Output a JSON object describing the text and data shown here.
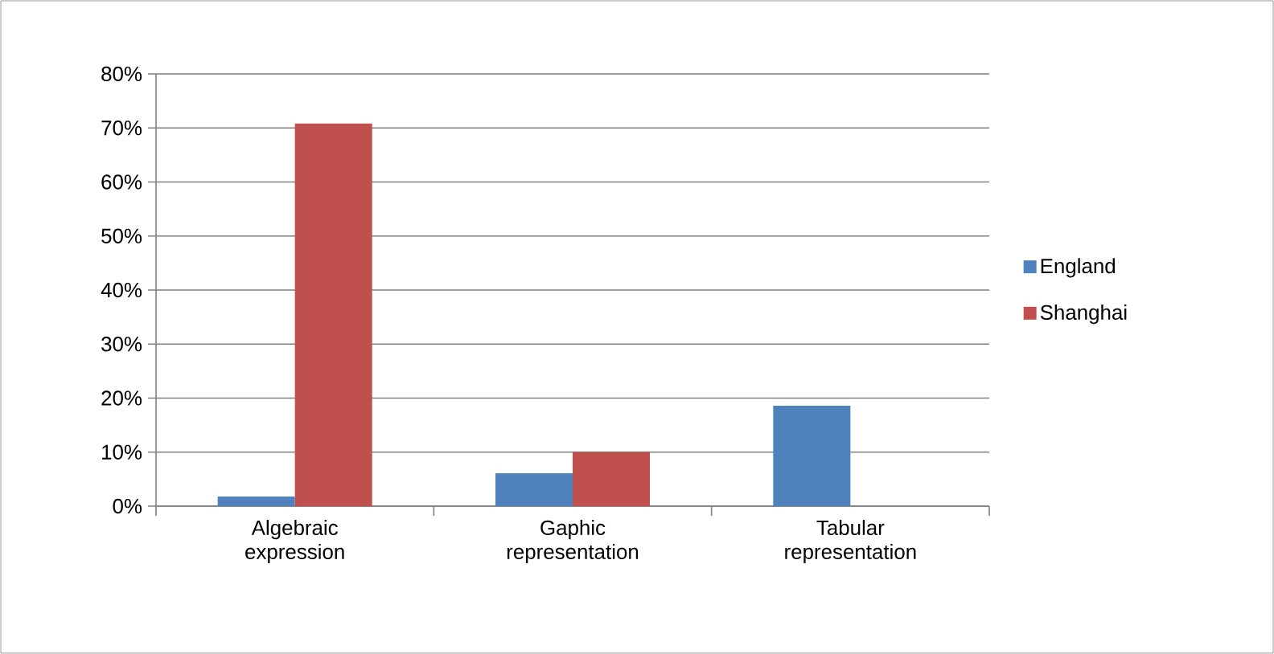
{
  "chart_data": {
    "type": "bar",
    "categories": [
      "Algebraic expression",
      "Gaphic representation",
      "Tabular representation"
    ],
    "series": [
      {
        "name": "England",
        "color": "#4f81bd",
        "values": [
          1.8,
          6.1,
          18.6
        ]
      },
      {
        "name": "Shanghai",
        "color": "#c0504d",
        "values": [
          70.8,
          10,
          0
        ]
      }
    ],
    "ylim": [
      0,
      80
    ],
    "yticks": [
      {
        "value": 0,
        "label": "0%"
      },
      {
        "value": 10,
        "label": "10%"
      },
      {
        "value": 20,
        "label": "20%"
      },
      {
        "value": 30,
        "label": "30%"
      },
      {
        "value": 40,
        "label": "40%"
      },
      {
        "value": 50,
        "label": "50%"
      },
      {
        "value": 60,
        "label": "60%"
      },
      {
        "value": 70,
        "label": "70%"
      },
      {
        "value": 80,
        "label": "80%"
      }
    ],
    "grid": "y",
    "legend": "right"
  }
}
